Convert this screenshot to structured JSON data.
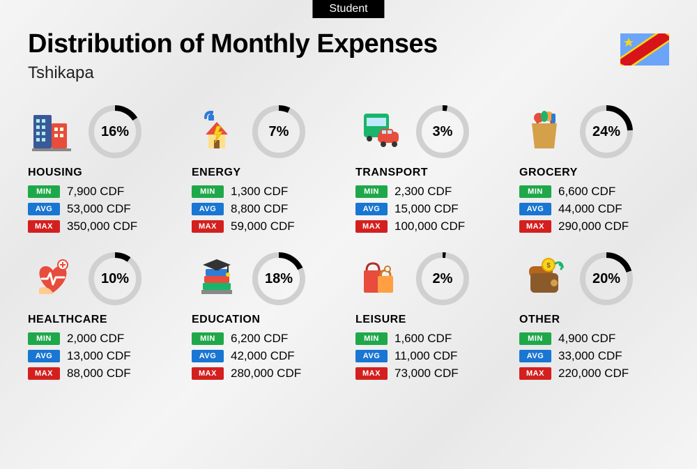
{
  "badge": "Student",
  "title": "Distribution of Monthly Expenses",
  "subtitle": "Tshikapa",
  "currency": "CDF",
  "colors": {
    "min": "#1fa84a",
    "avg": "#1976d2",
    "max": "#d3201f",
    "donut_track": "#d0d0d0",
    "donut_fill": "#000000"
  },
  "labels": {
    "min": "MIN",
    "avg": "AVG",
    "max": "MAX"
  },
  "flag": {
    "bg": "#6ba4f8",
    "stripe_outer": "#f7d618",
    "stripe_inner": "#d7141a",
    "star": "#f7d618"
  },
  "categories": [
    {
      "key": "housing",
      "name": "HOUSING",
      "pct": 16,
      "min": "7,900",
      "avg": "53,000",
      "max": "350,000",
      "icon": "housing"
    },
    {
      "key": "energy",
      "name": "ENERGY",
      "pct": 7,
      "min": "1,300",
      "avg": "8,800",
      "max": "59,000",
      "icon": "energy"
    },
    {
      "key": "transport",
      "name": "TRANSPORT",
      "pct": 3,
      "min": "2,300",
      "avg": "15,000",
      "max": "100,000",
      "icon": "transport"
    },
    {
      "key": "grocery",
      "name": "GROCERY",
      "pct": 24,
      "min": "6,600",
      "avg": "44,000",
      "max": "290,000",
      "icon": "grocery"
    },
    {
      "key": "healthcare",
      "name": "HEALTHCARE",
      "pct": 10,
      "min": "2,000",
      "avg": "13,000",
      "max": "88,000",
      "icon": "healthcare"
    },
    {
      "key": "education",
      "name": "EDUCATION",
      "pct": 18,
      "min": "6,200",
      "avg": "42,000",
      "max": "280,000",
      "icon": "education"
    },
    {
      "key": "leisure",
      "name": "LEISURE",
      "pct": 2,
      "min": "1,600",
      "avg": "11,000",
      "max": "73,000",
      "icon": "leisure"
    },
    {
      "key": "other",
      "name": "OTHER",
      "pct": 20,
      "min": "4,900",
      "avg": "33,000",
      "max": "220,000",
      "icon": "other"
    }
  ]
}
